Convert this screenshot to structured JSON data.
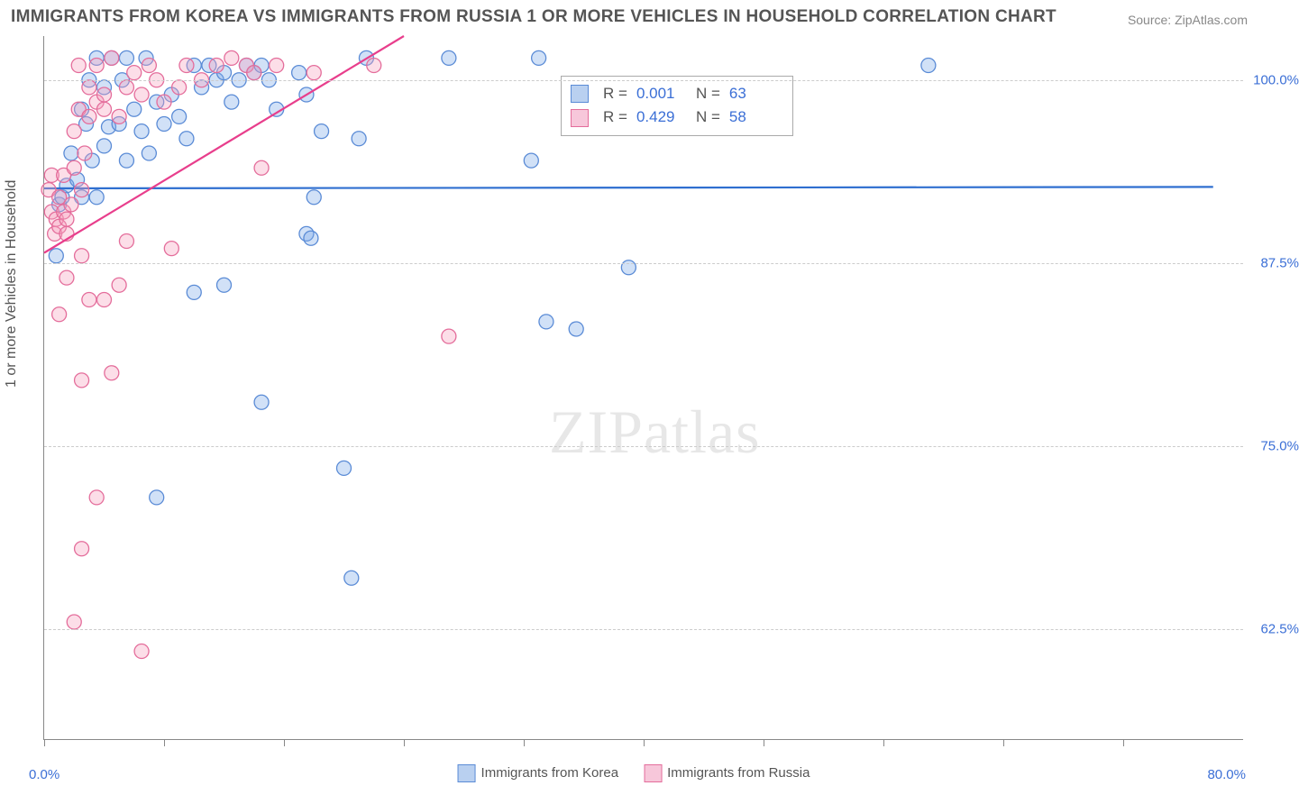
{
  "title": "IMMIGRANTS FROM KOREA VS IMMIGRANTS FROM RUSSIA 1 OR MORE VEHICLES IN HOUSEHOLD CORRELATION CHART",
  "source": "Source: ZipAtlas.com",
  "y_axis_label": "1 or more Vehicles in Household",
  "watermark_a": "ZIP",
  "watermark_b": "atlas",
  "x_min_label": "0.0%",
  "x_max_label": "80.0%",
  "plot": {
    "type": "scatter",
    "background_color": "#ffffff",
    "grid_color": "#cccccc",
    "axis_color": "#888888",
    "x_range": [
      0,
      80
    ],
    "y_range": [
      55,
      103
    ],
    "y_ticks": [
      62.5,
      75.0,
      87.5,
      100.0
    ],
    "y_tick_labels": [
      "62.5%",
      "75.0%",
      "87.5%",
      "100.0%"
    ],
    "x_ticks": [
      0,
      8,
      16,
      24,
      32,
      40,
      48,
      56,
      64,
      72
    ],
    "marker_radius": 8,
    "marker_stroke_width": 1.3,
    "trend_line_width": 2.2
  },
  "series": [
    {
      "name": "Immigrants from Korea",
      "fill": "rgba(124,168,232,0.35)",
      "stroke": "#5a8bd6",
      "swatch_fill": "#b9d0f0",
      "swatch_border": "#5a8bd6",
      "R": "0.001",
      "N": "63",
      "trend": {
        "color": "#2f6fd0",
        "x1": 0,
        "y1": 92.6,
        "x2": 78,
        "y2": 92.7
      },
      "points": [
        [
          0.8,
          88.0
        ],
        [
          1.0,
          91.5
        ],
        [
          1.2,
          92.0
        ],
        [
          1.5,
          92.8
        ],
        [
          1.8,
          95.0
        ],
        [
          2.2,
          93.2
        ],
        [
          2.5,
          98.0
        ],
        [
          2.8,
          97.0
        ],
        [
          2.5,
          92.0
        ],
        [
          3.0,
          100.0
        ],
        [
          3.2,
          94.5
        ],
        [
          3.5,
          92.0
        ],
        [
          3.5,
          101.5
        ],
        [
          4.0,
          95.5
        ],
        [
          4.0,
          99.5
        ],
        [
          4.3,
          96.8
        ],
        [
          4.5,
          101.5
        ],
        [
          5.0,
          97.0
        ],
        [
          5.2,
          100.0
        ],
        [
          5.5,
          101.5
        ],
        [
          5.5,
          94.5
        ],
        [
          6.0,
          98.0
        ],
        [
          6.5,
          96.5
        ],
        [
          6.8,
          101.5
        ],
        [
          7.0,
          95.0
        ],
        [
          7.5,
          98.5
        ],
        [
          8.0,
          97.0
        ],
        [
          8.5,
          99.0
        ],
        [
          9.0,
          97.5
        ],
        [
          9.5,
          96.0
        ],
        [
          10.0,
          101.0
        ],
        [
          10.5,
          99.5
        ],
        [
          11.0,
          101.0
        ],
        [
          11.5,
          100.0
        ],
        [
          12.0,
          100.5
        ],
        [
          12.5,
          98.5
        ],
        [
          13.0,
          100.0
        ],
        [
          13.5,
          101.0
        ],
        [
          14.0,
          100.5
        ],
        [
          14.5,
          101.0
        ],
        [
          15.0,
          100.0
        ],
        [
          15.5,
          98.0
        ],
        [
          17.0,
          100.5
        ],
        [
          17.5,
          99.0
        ],
        [
          18.0,
          92.0
        ],
        [
          18.5,
          96.5
        ],
        [
          21.0,
          96.0
        ],
        [
          21.5,
          101.5
        ],
        [
          10.0,
          85.5
        ],
        [
          12.0,
          86.0
        ],
        [
          14.5,
          78.0
        ],
        [
          17.5,
          89.5
        ],
        [
          17.8,
          89.2
        ],
        [
          20.0,
          73.5
        ],
        [
          20.5,
          66.0
        ],
        [
          27.0,
          101.5
        ],
        [
          32.5,
          94.5
        ],
        [
          33.5,
          83.5
        ],
        [
          35.5,
          83.0
        ],
        [
          39.0,
          87.2
        ],
        [
          33.0,
          101.5
        ],
        [
          59.0,
          101.0
        ],
        [
          7.5,
          71.5
        ]
      ]
    },
    {
      "name": "Immigrants from Russia",
      "fill": "rgba(245,160,190,0.35)",
      "stroke": "#e46d9b",
      "swatch_fill": "#f7c7da",
      "swatch_border": "#e46d9b",
      "R": "0.429",
      "N": "58",
      "trend": {
        "color": "#e83e8c",
        "x1": 0,
        "y1": 88.2,
        "x2": 24,
        "y2": 103.0
      },
      "points": [
        [
          0.3,
          92.5
        ],
        [
          0.5,
          91.0
        ],
        [
          0.7,
          89.5
        ],
        [
          0.5,
          93.5
        ],
        [
          0.8,
          90.5
        ],
        [
          1.0,
          92.0
        ],
        [
          1.0,
          90.0
        ],
        [
          1.3,
          91.0
        ],
        [
          1.3,
          93.5
        ],
        [
          1.5,
          90.5
        ],
        [
          1.5,
          89.5
        ],
        [
          1.8,
          91.5
        ],
        [
          2.0,
          96.5
        ],
        [
          2.0,
          94.0
        ],
        [
          2.3,
          98.0
        ],
        [
          2.3,
          101.0
        ],
        [
          2.5,
          92.5
        ],
        [
          2.7,
          95.0
        ],
        [
          3.0,
          97.5
        ],
        [
          3.0,
          99.5
        ],
        [
          3.5,
          98.5
        ],
        [
          3.5,
          101.0
        ],
        [
          4.0,
          99.0
        ],
        [
          4.0,
          98.0
        ],
        [
          4.5,
          101.5
        ],
        [
          5.0,
          97.5
        ],
        [
          5.5,
          99.5
        ],
        [
          6.0,
          100.5
        ],
        [
          6.5,
          99.0
        ],
        [
          7.0,
          101.0
        ],
        [
          7.5,
          100.0
        ],
        [
          8.0,
          98.5
        ],
        [
          9.0,
          99.5
        ],
        [
          9.5,
          101.0
        ],
        [
          10.5,
          100.0
        ],
        [
          11.5,
          101.0
        ],
        [
          12.5,
          101.5
        ],
        [
          13.5,
          101.0
        ],
        [
          14.0,
          100.5
        ],
        [
          14.5,
          94.0
        ],
        [
          15.5,
          101.0
        ],
        [
          18.0,
          100.5
        ],
        [
          22.0,
          101.0
        ],
        [
          27.0,
          82.5
        ],
        [
          1.5,
          86.5
        ],
        [
          2.5,
          88.0
        ],
        [
          3.0,
          85.0
        ],
        [
          4.0,
          85.0
        ],
        [
          5.0,
          86.0
        ],
        [
          4.5,
          80.0
        ],
        [
          5.5,
          89.0
        ],
        [
          8.5,
          88.5
        ],
        [
          3.5,
          71.5
        ],
        [
          6.5,
          61.0
        ],
        [
          2.5,
          68.0
        ],
        [
          1.0,
          84.0
        ],
        [
          2.0,
          63.0
        ],
        [
          2.5,
          79.5
        ]
      ]
    }
  ],
  "bottom_legend": [
    {
      "label": "Immigrants from Korea"
    },
    {
      "label": "Immigrants from Russia"
    }
  ]
}
